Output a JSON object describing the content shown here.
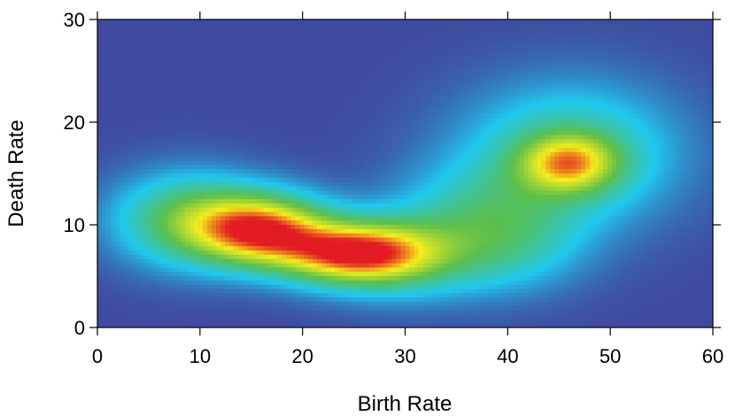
{
  "chart_data": {
    "type": "heatmap",
    "title": "",
    "xlabel": "Birth Rate",
    "ylabel": "Death Rate",
    "xlim": [
      0,
      60
    ],
    "ylim": [
      0,
      30
    ],
    "xticks": [
      "0",
      "10",
      "20",
      "30",
      "40",
      "50",
      "60"
    ],
    "yticks": [
      "0",
      "10",
      "20",
      "30"
    ],
    "grid": false,
    "legend": "none",
    "colorscale": [
      "#3f4aa0",
      "#21c8ee",
      "#5cbf4c",
      "#f6ee1c",
      "#e31b23"
    ],
    "density_components": [
      {
        "x": 16,
        "y": 9.5,
        "sx": 4.5,
        "sy": 2.3,
        "weight": 0.55
      },
      {
        "x": 25,
        "y": 7.2,
        "sx": 5.0,
        "sy": 2.0,
        "weight": 0.55
      },
      {
        "x": 30,
        "y": 7.0,
        "sx": 5.5,
        "sy": 2.8,
        "weight": 0.18
      },
      {
        "x": 9,
        "y": 10.5,
        "sx": 5.0,
        "sy": 3.0,
        "weight": 0.28
      },
      {
        "x": 46,
        "y": 16,
        "sx": 3.2,
        "sy": 1.9,
        "weight": 0.36
      },
      {
        "x": 46,
        "y": 17,
        "sx": 7.0,
        "sy": 4.5,
        "weight": 0.22
      },
      {
        "x": 38,
        "y": 11,
        "sx": 6.0,
        "sy": 3.5,
        "weight": 0.16
      },
      {
        "x": 40,
        "y": 7.5,
        "sx": 5.0,
        "sy": 3.0,
        "weight": 0.1
      }
    ]
  }
}
